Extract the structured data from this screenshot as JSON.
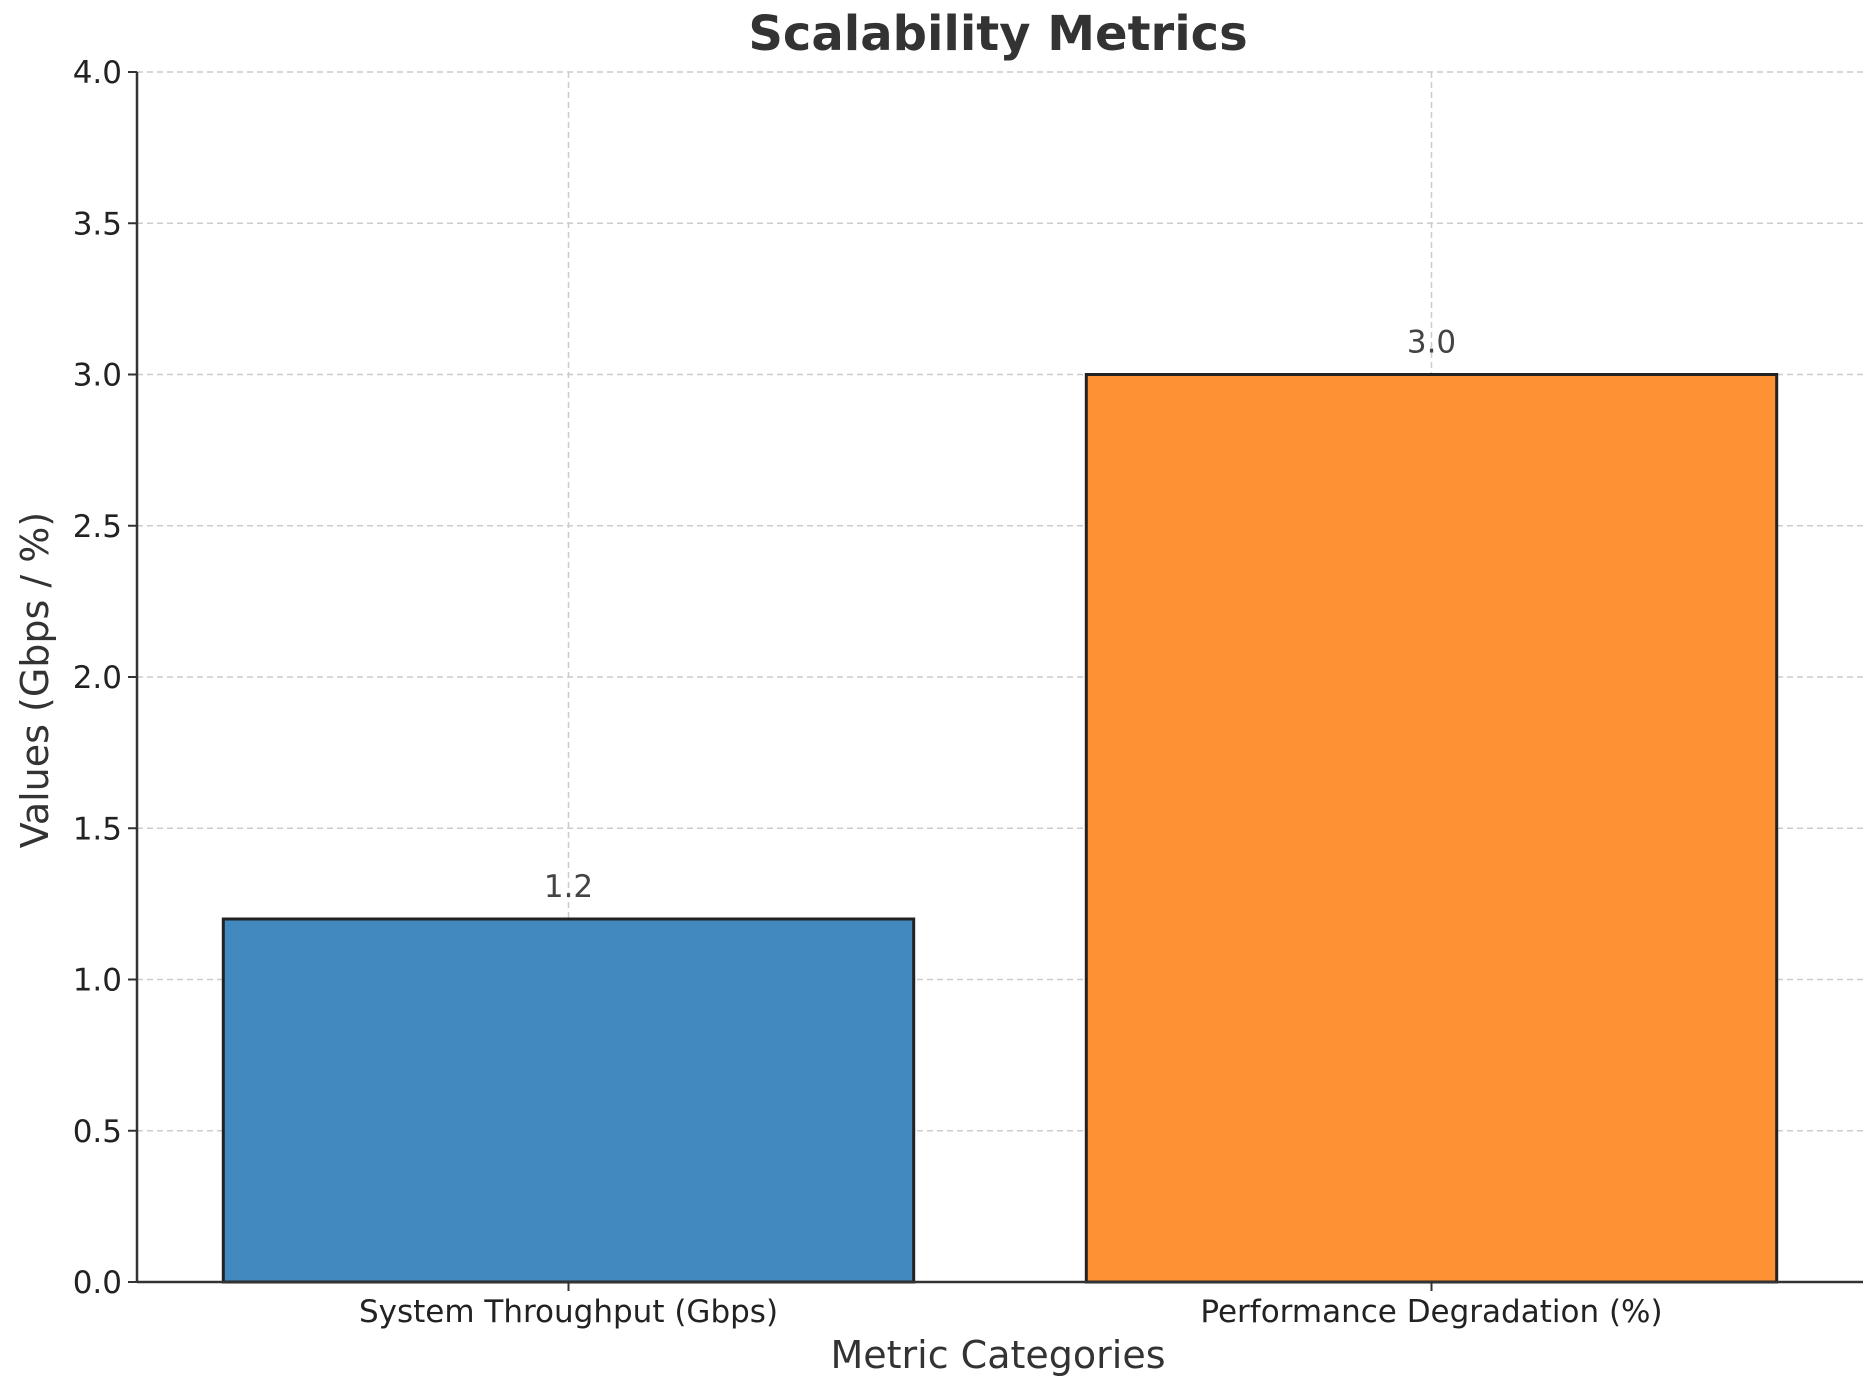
{
  "chart_data": {
    "type": "bar",
    "title": "Scalability Metrics",
    "xlabel": "Metric Categories",
    "ylabel": "Values (Gbps / %)",
    "categories": [
      "System Throughput (Gbps)",
      "Performance Degradation (%)"
    ],
    "values": [
      1.2,
      3.0
    ],
    "value_labels": [
      "1.2",
      "3.0"
    ],
    "colors": [
      "#4289bf",
      "#fd9134"
    ],
    "ylim": [
      0,
      4.0
    ],
    "yticks": [
      0.0,
      0.5,
      1.0,
      1.5,
      2.0,
      2.5,
      3.0,
      3.5,
      4.0
    ],
    "ytick_labels": [
      "0.0",
      "0.5",
      "1.0",
      "1.5",
      "2.0",
      "2.5",
      "3.0",
      "3.5",
      "4.0"
    ],
    "grid": true,
    "legend": "none"
  }
}
